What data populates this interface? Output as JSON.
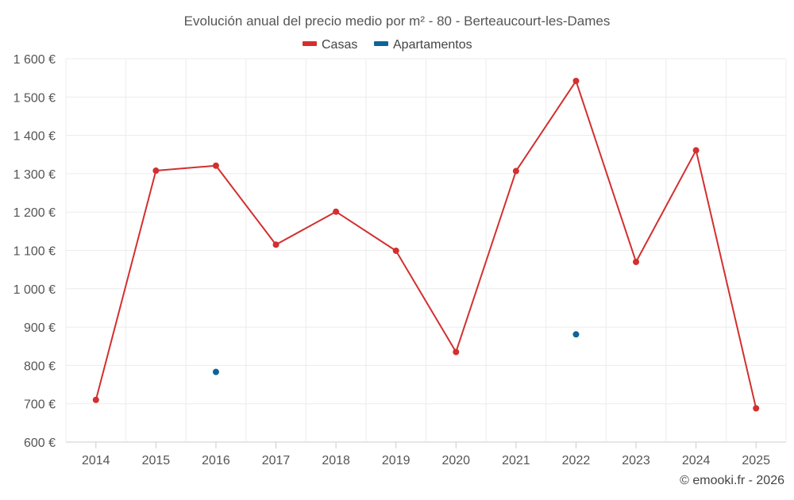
{
  "chart_data": {
    "type": "line",
    "title": "Evolución anual del precio medio por m² - 80 - Berteaucourt-les-Dames",
    "categories": [
      "2014",
      "2015",
      "2016",
      "2017",
      "2018",
      "2019",
      "2020",
      "2021",
      "2022",
      "2023",
      "2024",
      "2025"
    ],
    "series": [
      {
        "name": "Casas",
        "color": "#d32f2f",
        "values": [
          710,
          1308,
          1321,
          1115,
          1201,
          1099,
          835,
          1307,
          1542,
          1070,
          1361,
          688
        ]
      },
      {
        "name": "Apartamentos",
        "color": "#0d6499",
        "values": [
          null,
          null,
          783,
          null,
          null,
          null,
          null,
          null,
          881,
          null,
          null,
          null
        ]
      }
    ],
    "ylim": [
      600,
      1600
    ],
    "yticks": [
      600,
      700,
      800,
      900,
      1000,
      1100,
      1200,
      1300,
      1400,
      1500,
      1600
    ],
    "ytick_labels": [
      "600 €",
      "700 €",
      "800 €",
      "900 €",
      "1 000 €",
      "1 100 €",
      "1 200 €",
      "1 300 €",
      "1 400 €",
      "1 500 €",
      "1 600 €"
    ],
    "grid": true,
    "legend_position": "top-center"
  },
  "credit": "© emooki.fr - 2026"
}
